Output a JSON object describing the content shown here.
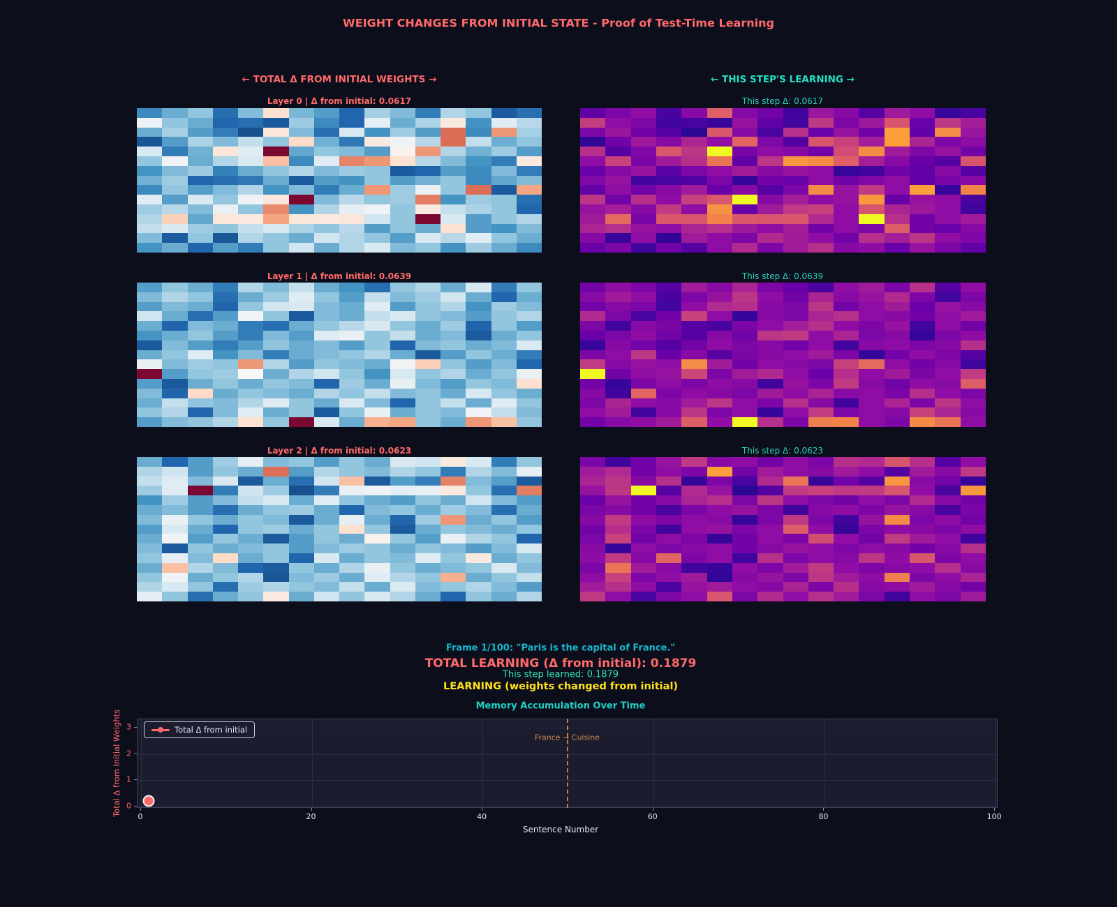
{
  "title": "WEIGHT CHANGES FROM INITIAL STATE - Proof of Test-Time Learning",
  "columns": {
    "left_header": "← TOTAL Δ FROM INITIAL WEIGHTS →",
    "right_header": "← THIS STEP'S LEARNING →"
  },
  "colors": {
    "salmon": "#ff6b6b",
    "teal": "#23e0c2",
    "cyan": "#16b8cc",
    "yellow": "#ffe11a",
    "orange": "#cc7f42",
    "bg": "#0d0e1b",
    "plot_bg": "#1b1c2e"
  },
  "layers": [
    {
      "left_title": "Layer 0 | Δ from initial: 0.0617",
      "right_title": "This step Δ: 0.0617",
      "values": [
        [
          0.18,
          0.25,
          0.3,
          0.12,
          0.28,
          0.58,
          0.27,
          0.22,
          0.1,
          0.33,
          0.28,
          0.15,
          0.35,
          0.3,
          0.08,
          0.12
        ],
        [
          0.47,
          0.3,
          0.25,
          0.1,
          0.12,
          0.08,
          0.32,
          0.18,
          0.1,
          0.45,
          0.25,
          0.34,
          0.55,
          0.2,
          0.44,
          0.36
        ],
        [
          0.25,
          0.33,
          0.22,
          0.15,
          0.06,
          0.56,
          0.28,
          0.12,
          0.42,
          0.2,
          0.32,
          0.22,
          0.78,
          0.18,
          0.72,
          0.33
        ],
        [
          0.07,
          0.22,
          0.34,
          0.28,
          0.38,
          0.3,
          0.6,
          0.26,
          0.14,
          0.55,
          0.48,
          0.36,
          0.78,
          0.38,
          0.25,
          0.3
        ],
        [
          0.42,
          0.15,
          0.26,
          0.56,
          0.44,
          1.0,
          0.24,
          0.3,
          0.28,
          0.22,
          0.52,
          0.72,
          0.35,
          0.26,
          0.32,
          0.22
        ],
        [
          0.3,
          0.48,
          0.25,
          0.35,
          0.42,
          0.65,
          0.18,
          0.44,
          0.75,
          0.72,
          0.58,
          0.36,
          0.28,
          0.2,
          0.15,
          0.55
        ],
        [
          0.2,
          0.28,
          0.32,
          0.16,
          0.25,
          0.3,
          0.35,
          0.28,
          0.32,
          0.3,
          0.08,
          0.1,
          0.22,
          0.18,
          0.28,
          0.15
        ],
        [
          0.26,
          0.32,
          0.1,
          0.12,
          0.14,
          0.25,
          0.08,
          0.22,
          0.2,
          0.3,
          0.22,
          0.26,
          0.3,
          0.18,
          0.24,
          0.28
        ],
        [
          0.18,
          0.3,
          0.22,
          0.28,
          0.35,
          0.2,
          0.28,
          0.15,
          0.25,
          0.72,
          0.32,
          0.46,
          0.3,
          0.78,
          0.08,
          0.7
        ],
        [
          0.44,
          0.22,
          0.42,
          0.3,
          0.48,
          0.56,
          1.0,
          0.28,
          0.36,
          0.3,
          0.32,
          0.76,
          0.2,
          0.32,
          0.3,
          0.12
        ],
        [
          0.32,
          0.36,
          0.28,
          0.46,
          0.3,
          0.74,
          0.2,
          0.35,
          0.45,
          0.48,
          0.3,
          0.55,
          0.38,
          0.34,
          0.3,
          0.1
        ],
        [
          0.35,
          0.62,
          0.24,
          0.56,
          0.55,
          0.7,
          0.56,
          0.55,
          0.56,
          0.4,
          0.3,
          1.0,
          0.42,
          0.22,
          0.3,
          0.35
        ],
        [
          0.38,
          0.42,
          0.32,
          0.3,
          0.38,
          0.42,
          0.34,
          0.3,
          0.36,
          0.22,
          0.3,
          0.25,
          0.58,
          0.22,
          0.2,
          0.28
        ],
        [
          0.28,
          0.08,
          0.3,
          0.07,
          0.35,
          0.3,
          0.25,
          0.4,
          0.35,
          0.3,
          0.22,
          0.42,
          0.36,
          0.44,
          0.3,
          0.25
        ],
        [
          0.2,
          0.25,
          0.1,
          0.22,
          0.15,
          0.3,
          0.4,
          0.25,
          0.35,
          0.42,
          0.28,
          0.3,
          0.2,
          0.32,
          0.25,
          0.18
        ]
      ]
    },
    {
      "left_title": "Layer 1 | Δ from initial: 0.0639",
      "right_title": "This step Δ: 0.0639",
      "values": [
        [
          0.22,
          0.3,
          0.25,
          0.15,
          0.35,
          0.28,
          0.38,
          0.25,
          0.2,
          0.12,
          0.3,
          0.35,
          0.25,
          0.42,
          0.15,
          0.3
        ],
        [
          0.28,
          0.35,
          0.3,
          0.12,
          0.25,
          0.32,
          0.44,
          0.3,
          0.22,
          0.38,
          0.28,
          0.32,
          0.4,
          0.25,
          0.1,
          0.25
        ],
        [
          0.22,
          0.28,
          0.25,
          0.1,
          0.3,
          0.4,
          0.42,
          0.28,
          0.25,
          0.44,
          0.22,
          0.3,
          0.35,
          0.2,
          0.32,
          0.28
        ],
        [
          0.4,
          0.25,
          0.12,
          0.22,
          0.48,
          0.3,
          0.08,
          0.28,
          0.25,
          0.38,
          0.42,
          0.3,
          0.28,
          0.22,
          0.3,
          0.35
        ],
        [
          0.25,
          0.1,
          0.28,
          0.25,
          0.15,
          0.12,
          0.25,
          0.3,
          0.36,
          0.42,
          0.3,
          0.25,
          0.32,
          0.1,
          0.3,
          0.22
        ],
        [
          0.2,
          0.25,
          0.3,
          0.22,
          0.15,
          0.28,
          0.22,
          0.44,
          0.46,
          0.3,
          0.38,
          0.25,
          0.28,
          0.08,
          0.25,
          0.3
        ],
        [
          0.08,
          0.28,
          0.22,
          0.15,
          0.22,
          0.3,
          0.25,
          0.28,
          0.22,
          0.3,
          0.1,
          0.28,
          0.3,
          0.25,
          0.28,
          0.42
        ],
        [
          0.25,
          0.3,
          0.44,
          0.2,
          0.28,
          0.15,
          0.25,
          0.28,
          0.3,
          0.35,
          0.25,
          0.08,
          0.22,
          0.3,
          0.25,
          0.15
        ],
        [
          0.46,
          0.28,
          0.32,
          0.3,
          0.72,
          0.35,
          0.22,
          0.3,
          0.28,
          0.25,
          0.48,
          0.62,
          0.3,
          0.22,
          0.28,
          0.1
        ],
        [
          1.0,
          0.22,
          0.3,
          0.32,
          0.5,
          0.25,
          0.35,
          0.4,
          0.3,
          0.2,
          0.42,
          0.3,
          0.35,
          0.25,
          0.3,
          0.46
        ],
        [
          0.22,
          0.08,
          0.25,
          0.3,
          0.25,
          0.3,
          0.28,
          0.1,
          0.32,
          0.25,
          0.46,
          0.28,
          0.22,
          0.3,
          0.28,
          0.58
        ],
        [
          0.28,
          0.1,
          0.6,
          0.25,
          0.3,
          0.28,
          0.25,
          0.35,
          0.3,
          0.38,
          0.28,
          0.3,
          0.25,
          0.42,
          0.3,
          0.25
        ],
        [
          0.25,
          0.38,
          0.3,
          0.28,
          0.35,
          0.44,
          0.3,
          0.25,
          0.42,
          0.28,
          0.1,
          0.3,
          0.38,
          0.25,
          0.44,
          0.3
        ],
        [
          0.3,
          0.35,
          0.1,
          0.28,
          0.44,
          0.25,
          0.3,
          0.08,
          0.3,
          0.46,
          0.25,
          0.3,
          0.28,
          0.48,
          0.38,
          0.28
        ],
        [
          0.22,
          0.28,
          0.3,
          0.35,
          0.58,
          0.3,
          1.0,
          0.42,
          0.25,
          0.68,
          0.7,
          0.3,
          0.25,
          0.72,
          0.65,
          0.3
        ]
      ]
    },
    {
      "left_title": "Layer 2 | Δ from initial: 0.0623",
      "right_title": "This step Δ: 0.0623",
      "values": [
        [
          0.25,
          0.1,
          0.22,
          0.32,
          0.45,
          0.28,
          0.3,
          0.22,
          0.3,
          0.25,
          0.42,
          0.4,
          0.55,
          0.42,
          0.15,
          0.3
        ],
        [
          0.35,
          0.4,
          0.22,
          0.3,
          0.25,
          0.78,
          0.22,
          0.35,
          0.3,
          0.28,
          0.35,
          0.3,
          0.15,
          0.35,
          0.28,
          0.45
        ],
        [
          0.38,
          0.44,
          0.28,
          0.42,
          0.08,
          0.25,
          0.12,
          0.4,
          0.65,
          0.08,
          0.22,
          0.15,
          0.75,
          0.28,
          0.22,
          0.08
        ],
        [
          0.32,
          0.44,
          1.0,
          0.15,
          0.4,
          0.32,
          0.06,
          0.15,
          0.46,
          0.48,
          0.45,
          0.46,
          0.55,
          0.3,
          0.12,
          0.76
        ],
        [
          0.2,
          0.32,
          0.22,
          0.28,
          0.38,
          0.42,
          0.25,
          0.44,
          0.3,
          0.25,
          0.22,
          0.3,
          0.25,
          0.4,
          0.28,
          0.22
        ],
        [
          0.25,
          0.28,
          0.22,
          0.12,
          0.25,
          0.3,
          0.32,
          0.25,
          0.1,
          0.28,
          0.3,
          0.25,
          0.32,
          0.28,
          0.12,
          0.25
        ],
        [
          0.28,
          0.46,
          0.3,
          0.25,
          0.3,
          0.28,
          0.08,
          0.25,
          0.45,
          0.25,
          0.1,
          0.32,
          0.72,
          0.25,
          0.3,
          0.22
        ],
        [
          0.22,
          0.42,
          0.25,
          0.1,
          0.3,
          0.32,
          0.25,
          0.3,
          0.58,
          0.3,
          0.08,
          0.25,
          0.3,
          0.28,
          0.25,
          0.3
        ],
        [
          0.25,
          0.48,
          0.22,
          0.3,
          0.25,
          0.08,
          0.22,
          0.3,
          0.25,
          0.52,
          0.3,
          0.22,
          0.46,
          0.35,
          0.3,
          0.1
        ],
        [
          0.28,
          0.08,
          0.3,
          0.25,
          0.28,
          0.3,
          0.22,
          0.28,
          0.32,
          0.3,
          0.25,
          0.3,
          0.28,
          0.22,
          0.28,
          0.42
        ],
        [
          0.3,
          0.45,
          0.28,
          0.6,
          0.25,
          0.3,
          0.1,
          0.42,
          0.25,
          0.3,
          0.28,
          0.44,
          0.3,
          0.55,
          0.25,
          0.3
        ],
        [
          0.25,
          0.65,
          0.35,
          0.28,
          0.1,
          0.08,
          0.3,
          0.25,
          0.35,
          0.46,
          0.3,
          0.25,
          0.28,
          0.3,
          0.42,
          0.28
        ],
        [
          0.3,
          0.48,
          0.25,
          0.3,
          0.35,
          0.07,
          0.28,
          0.32,
          0.25,
          0.44,
          0.35,
          0.3,
          0.68,
          0.25,
          0.3,
          0.38
        ],
        [
          0.35,
          0.42,
          0.3,
          0.12,
          0.32,
          0.35,
          0.3,
          0.28,
          0.38,
          0.25,
          0.42,
          0.28,
          0.3,
          0.35,
          0.28,
          0.22
        ],
        [
          0.45,
          0.3,
          0.12,
          0.25,
          0.3,
          0.55,
          0.25,
          0.4,
          0.3,
          0.42,
          0.35,
          0.25,
          0.1,
          0.3,
          0.25,
          0.35
        ]
      ]
    }
  ],
  "status": {
    "frame": "Frame 1/100: \"Paris is the capital of France.\"",
    "total": "TOTAL LEARNING (Δ from initial): 0.1879",
    "step": "This step learned: 0.1879",
    "learning": "LEARNING (weights changed from initial)"
  },
  "chart_data": {
    "type": "scatter",
    "title": "Memory Accumulation Over Time",
    "xlabel": "Sentence Number",
    "ylabel": "Total Δ from Initial Weights",
    "xlim": [
      -0.4,
      100.4
    ],
    "ylim": [
      -0.08,
      3.32
    ],
    "xticks": [
      0,
      20,
      40,
      60,
      80,
      100
    ],
    "yticks": [
      0,
      1,
      2,
      3
    ],
    "grid": true,
    "legend_position": "upper left",
    "series": [
      {
        "name": "Total Δ from initial",
        "x": [
          1
        ],
        "y": [
          0.1879
        ],
        "color": "#ff6b6b"
      }
    ],
    "annotation": {
      "text": "France → Cuisine",
      "x": 50,
      "y": 2.6
    }
  }
}
